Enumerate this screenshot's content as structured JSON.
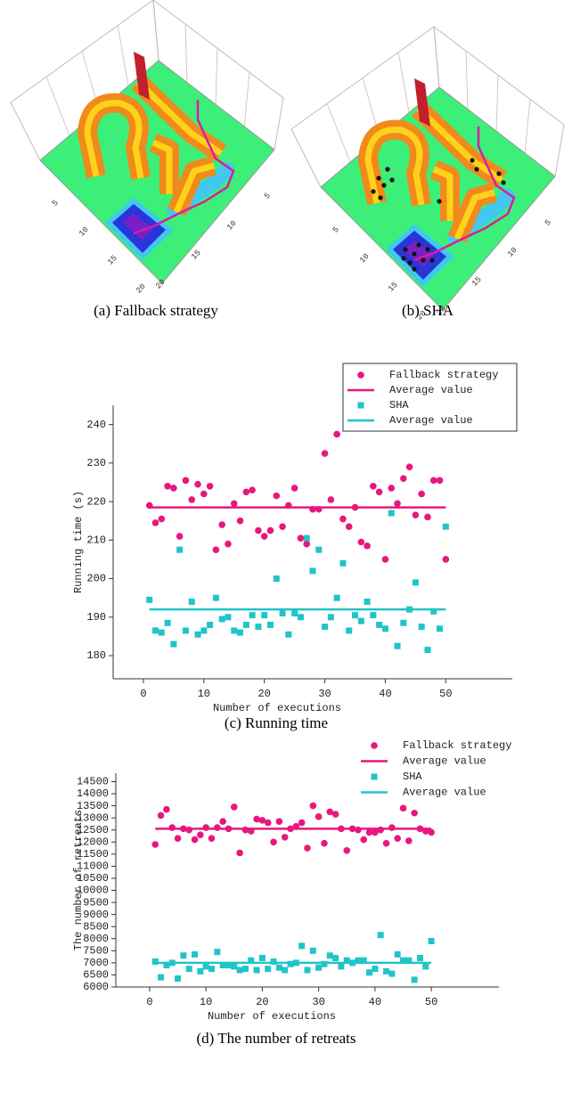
{
  "images": [
    {
      "caption": "(a) Fallback strategy",
      "xticks": [
        5,
        10,
        15,
        20
      ],
      "yticks": [
        5,
        10,
        15,
        20
      ]
    },
    {
      "caption": "(b) SHA",
      "xticks": [
        5,
        10,
        15,
        20
      ],
      "yticks": [
        5,
        10,
        15,
        20
      ]
    }
  ],
  "chart_data": [
    {
      "type": "scatter",
      "caption": "(c) Running time",
      "xlabel": "Number of executions",
      "ylabel": "Running time (s)",
      "xlim": [
        -5,
        61
      ],
      "ylim": [
        174,
        245
      ],
      "xticks": [
        0,
        10,
        20,
        30,
        40,
        50
      ],
      "yticks": [
        180,
        190,
        200,
        210,
        220,
        230,
        240
      ],
      "legend_box": true,
      "x": [
        1,
        2,
        3,
        4,
        5,
        6,
        7,
        8,
        9,
        10,
        11,
        12,
        13,
        14,
        15,
        16,
        17,
        18,
        19,
        20,
        21,
        22,
        23,
        24,
        25,
        26,
        27,
        28,
        29,
        30,
        31,
        32,
        33,
        34,
        35,
        36,
        37,
        38,
        39,
        40,
        41,
        42,
        43,
        44,
        45,
        46,
        47,
        48,
        49,
        50
      ],
      "series": [
        {
          "name": "Fallback strategy",
          "color": "#e8177d",
          "marker": "circle",
          "values": [
            219,
            214.5,
            215.5,
            224,
            223.5,
            211,
            225.5,
            220.5,
            224.5,
            222,
            224,
            207.5,
            214,
            209,
            219.5,
            215,
            222.5,
            223,
            212.5,
            211,
            212.5,
            221.5,
            213.5,
            219,
            223.5,
            210.5,
            209,
            218,
            218,
            232.5,
            220.5,
            237.5,
            215.5,
            213.5,
            218.5,
            209.5,
            208.5,
            224,
            222.5,
            205,
            223.5,
            219.5,
            226,
            229,
            216.5,
            222,
            216,
            225.5,
            225.5,
            205
          ]
        },
        {
          "name": "Average value",
          "color": "#e8177d",
          "marker": "line",
          "x": [
            1,
            50
          ],
          "values": [
            218.5,
            218.5
          ]
        },
        {
          "name": "SHA",
          "color": "#21c4c8",
          "marker": "square",
          "values": [
            194.5,
            186.5,
            186,
            188.5,
            183,
            207.5,
            186.5,
            194,
            185.5,
            186.5,
            188,
            195,
            189.5,
            190,
            186.5,
            186,
            188,
            190.5,
            187.5,
            190.5,
            188,
            200,
            191,
            185.5,
            191,
            190,
            210.5,
            202,
            207.5,
            187.5,
            190,
            195,
            204,
            186.5,
            190.5,
            189,
            194,
            190.5,
            188,
            187,
            217,
            182.5,
            188.5,
            192,
            199,
            187.5,
            181.5,
            191.5,
            187,
            213.5
          ]
        },
        {
          "name": "Average value",
          "color": "#21c4c8",
          "marker": "line",
          "x": [
            1,
            50
          ],
          "values": [
            192,
            192
          ]
        }
      ]
    },
    {
      "type": "scatter",
      "caption": "(d) The number of retreats",
      "xlabel": "Number of executions",
      "ylabel": "The number of retreats",
      "xlim": [
        -6,
        62
      ],
      "ylim": [
        6000,
        14850
      ],
      "xticks": [
        0,
        10,
        20,
        30,
        40,
        50
      ],
      "yticks": [
        6000,
        6500,
        7000,
        7500,
        8000,
        8500,
        9000,
        9500,
        10000,
        10500,
        11000,
        11500,
        12000,
        12500,
        13000,
        13500,
        14000,
        14500
      ],
      "legend_box": false,
      "x": [
        1,
        2,
        3,
        4,
        5,
        6,
        7,
        8,
        9,
        10,
        11,
        12,
        13,
        14,
        15,
        16,
        17,
        18,
        19,
        20,
        21,
        22,
        23,
        24,
        25,
        26,
        27,
        28,
        29,
        30,
        31,
        32,
        33,
        34,
        35,
        36,
        37,
        38,
        39,
        40,
        41,
        42,
        43,
        44,
        45,
        46,
        47,
        48,
        49,
        50
      ],
      "series": [
        {
          "name": "Fallback strategy",
          "color": "#e8177d",
          "marker": "circle",
          "values": [
            11900,
            13100,
            13350,
            12600,
            12150,
            12550,
            12500,
            12100,
            12300,
            12600,
            12150,
            12600,
            12850,
            12550,
            13450,
            11550,
            12500,
            12450,
            12950,
            12900,
            12800,
            12000,
            12850,
            12200,
            12550,
            12650,
            12800,
            11750,
            13500,
            13050,
            11950,
            13250,
            13150,
            12550,
            11650,
            12550,
            12500,
            12100,
            12400,
            12400,
            12500,
            11950,
            12600,
            12150,
            13400,
            12050,
            13200,
            12550,
            12450,
            12400
          ]
        },
        {
          "name": "Average value",
          "color": "#e8177d",
          "marker": "line",
          "x": [
            1,
            50
          ],
          "values": [
            12550,
            12550
          ]
        },
        {
          "name": "SHA",
          "color": "#21c4c8",
          "marker": "square",
          "values": [
            7050,
            6400,
            6900,
            7000,
            6350,
            7300,
            6750,
            7350,
            6650,
            6850,
            6750,
            7450,
            6900,
            6900,
            6850,
            6700,
            6750,
            7100,
            6700,
            7200,
            6750,
            7050,
            6800,
            6700,
            6950,
            7000,
            7700,
            6700,
            7500,
            6800,
            6950,
            7300,
            7200,
            6850,
            7100,
            7000,
            7100,
            7100,
            6600,
            6750,
            8150,
            6650,
            6550,
            7350,
            7100,
            7100,
            6300,
            7200,
            6850,
            7900
          ]
        },
        {
          "name": "Average value",
          "color": "#21c4c8",
          "marker": "line",
          "x": [
            1,
            50
          ],
          "values": [
            7000,
            7000
          ]
        }
      ]
    }
  ]
}
